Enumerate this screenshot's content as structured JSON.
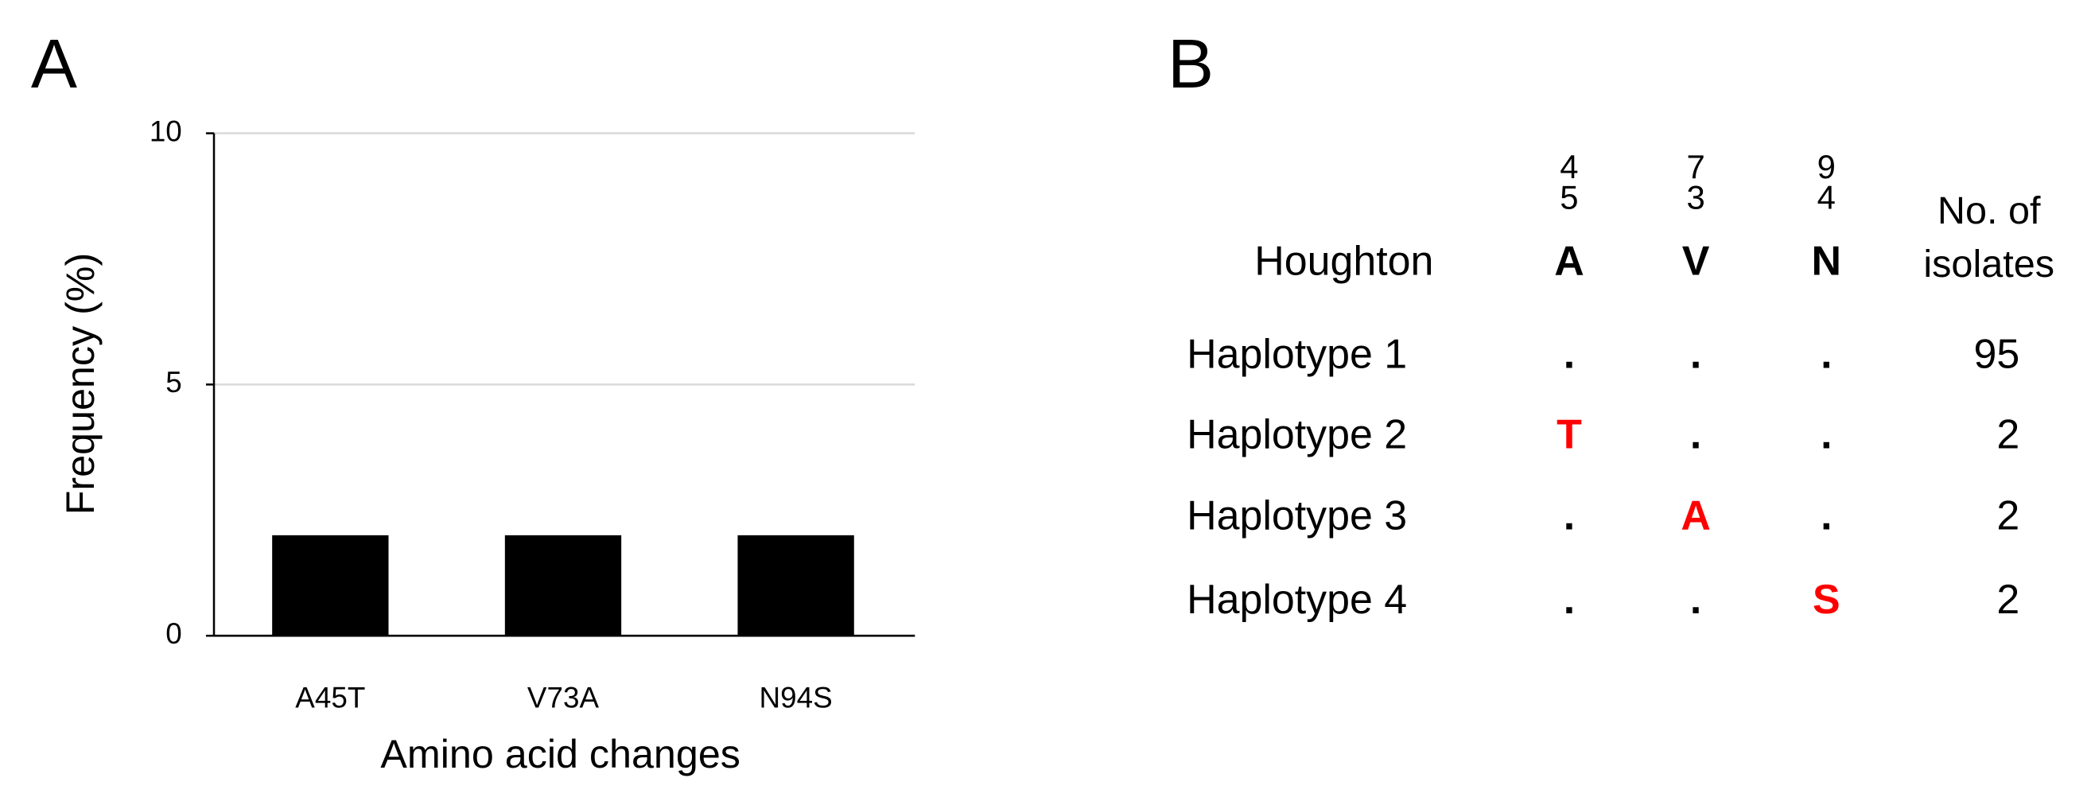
{
  "chart_data": {
    "type": "bar",
    "panel_label": "A",
    "x_label": "Amino acid changes",
    "y_label": "Frequency (%)",
    "categories": [
      "A45T",
      "V73A",
      "N94S"
    ],
    "values": [
      2,
      2,
      2
    ],
    "color": "#000000",
    "ylim": [
      0,
      10
    ],
    "yticks": [
      0,
      5,
      10
    ],
    "grid": true
  },
  "table": {
    "panel_label": "B",
    "positions": [
      [
        "4",
        "5"
      ],
      [
        "7",
        "3"
      ],
      [
        "9",
        "4"
      ]
    ],
    "count_header": [
      "No. of",
      "isolates"
    ],
    "reference": {
      "name": "Houghton",
      "residues": [
        "A",
        "V",
        "N"
      ]
    },
    "rows": [
      {
        "name": "Haplotype 1",
        "residues": [
          ".",
          ".",
          "."
        ],
        "count": 95
      },
      {
        "name": "Haplotype 2",
        "residues": [
          "T",
          ".",
          "."
        ],
        "count": 2
      },
      {
        "name": "Haplotype 3",
        "residues": [
          ".",
          "A",
          "."
        ],
        "count": 2
      },
      {
        "name": "Haplotype 4",
        "residues": [
          ".",
          ".",
          "S"
        ],
        "count": 2
      }
    ],
    "mutation_color": "#ff0000"
  }
}
